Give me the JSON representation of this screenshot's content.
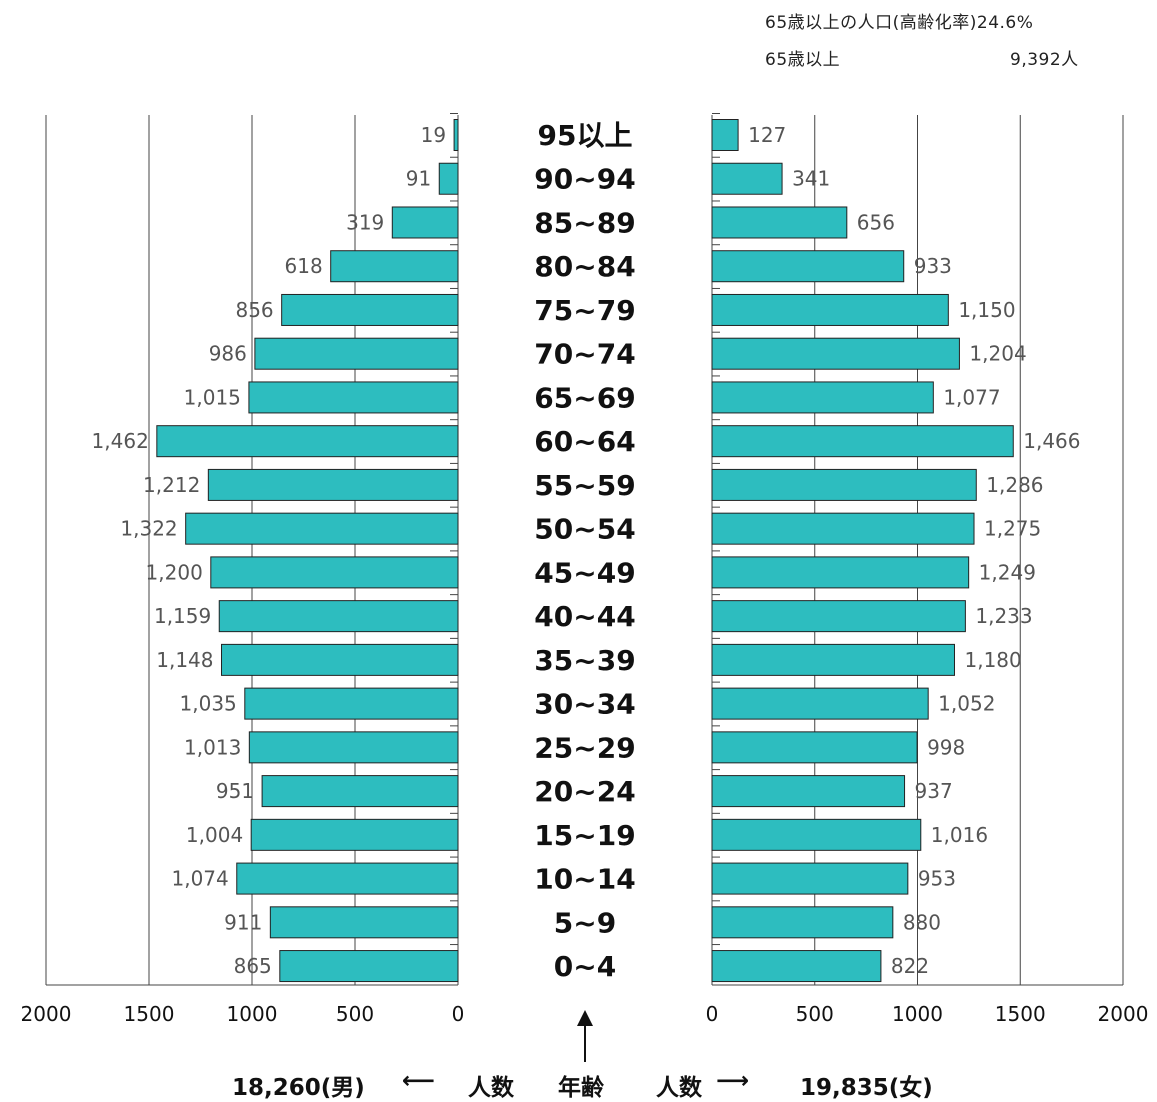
{
  "summary": {
    "elderly_rate_label": "65歳以上の人口(高齢化率)24.6%",
    "elderly_label": "65歳以上",
    "elderly_value": "9,392人"
  },
  "footer": {
    "male_total": "18,260(男)",
    "male_arrow": "⟵",
    "male_axis_label": "人数",
    "age_label": "年齢",
    "female_axis_label": "人数",
    "female_arrow": "⟶",
    "female_total": "19,835(女)"
  },
  "chart_data": {
    "type": "bar",
    "orientation": "population-pyramid",
    "categories": [
      "95以上",
      "90~94",
      "85~89",
      "80~84",
      "75~79",
      "70~74",
      "65~69",
      "60~64",
      "55~59",
      "50~54",
      "45~49",
      "40~44",
      "35~39",
      "30~34",
      "25~29",
      "20~24",
      "15~19",
      "10~14",
      "5~9",
      "0~4"
    ],
    "series": [
      {
        "name": "男",
        "values": [
          19,
          91,
          319,
          618,
          856,
          986,
          1015,
          1462,
          1212,
          1322,
          1200,
          1159,
          1148,
          1035,
          1013,
          951,
          1004,
          1074,
          911,
          865
        ],
        "labels": [
          "19",
          "91",
          "319",
          "618",
          "856",
          "986",
          "1,015",
          "1,462",
          "1,212",
          "1,322",
          "1,200",
          "1,159",
          "1,148",
          "1,035",
          "1,013",
          "951",
          "1,004",
          "1,074",
          "911",
          "865"
        ]
      },
      {
        "name": "女",
        "values": [
          127,
          341,
          656,
          933,
          1150,
          1204,
          1077,
          1466,
          1286,
          1275,
          1249,
          1233,
          1180,
          1052,
          998,
          937,
          1016,
          953,
          880,
          822
        ],
        "labels": [
          "127",
          "341",
          "656",
          "933",
          "1,150",
          "1,204",
          "1,077",
          "1,466",
          "1,286",
          "1,275",
          "1,249",
          "1,233",
          "1,180",
          "1,052",
          "998",
          "937",
          "1,016",
          "953",
          "880",
          "822"
        ]
      }
    ],
    "male_ticks": [
      "2000",
      "1500",
      "1000",
      "500",
      "0"
    ],
    "female_ticks": [
      "0",
      "500",
      "1000",
      "1500",
      "2000"
    ],
    "xlim": [
      0,
      2000
    ],
    "grid": true,
    "bar_color": "#2dbdbf"
  }
}
